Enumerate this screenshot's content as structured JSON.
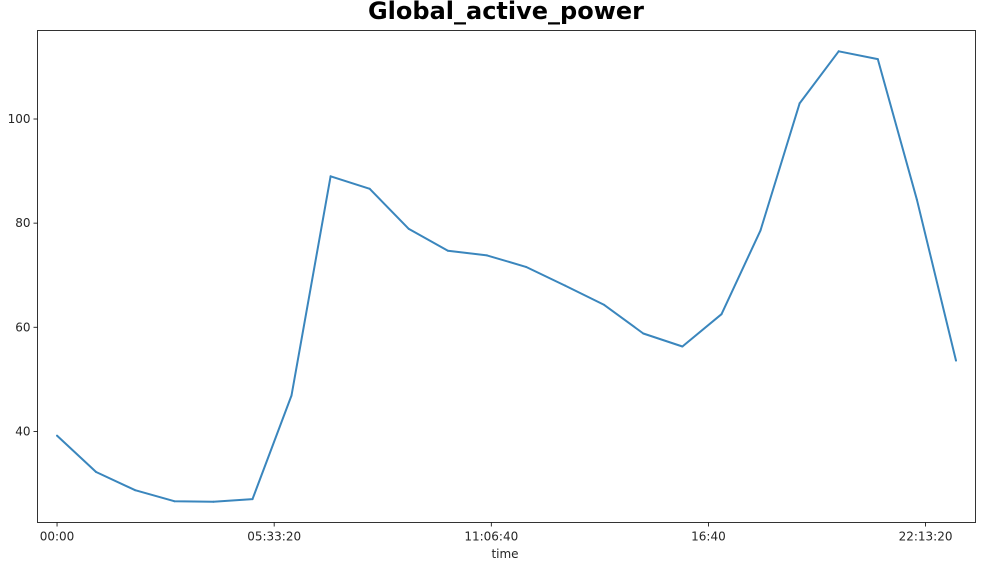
{
  "chart_data": {
    "type": "line",
    "title": "Global_active_power",
    "xlabel": "time",
    "ylabel": "",
    "x_ticks": [
      "00:00",
      "05:33:20",
      "11:06:40",
      "16:40",
      "22:13:20"
    ],
    "y_ticks": [
      "40",
      "60",
      "80",
      "100"
    ],
    "xlim": [
      -1800,
      84600
    ],
    "ylim": [
      22.5,
      117
    ],
    "grid": false,
    "series": [
      {
        "color": "#3a86bd",
        "x": [
          "00:00",
          "01:00",
          "02:00",
          "03:00",
          "04:00",
          "05:00",
          "06:00",
          "07:00",
          "08:00",
          "09:00",
          "10:00",
          "11:00",
          "12:00",
          "13:00",
          "14:00",
          "15:00",
          "16:00",
          "17:00",
          "18:00",
          "19:00",
          "20:00",
          "21:00",
          "22:00",
          "23:00"
        ],
        "x_seconds": [
          0,
          3600,
          7200,
          10800,
          14400,
          18000,
          21600,
          25200,
          28800,
          32400,
          36000,
          39600,
          43200,
          46800,
          50400,
          54000,
          57600,
          61200,
          64800,
          68400,
          72000,
          75600,
          79200,
          82800
        ],
        "values": [
          39.2,
          32.2,
          28.7,
          26.6,
          26.5,
          27.0,
          46.9,
          89.0,
          86.6,
          78.9,
          74.7,
          73.8,
          71.6,
          68.0,
          64.3,
          58.8,
          56.3,
          62.5,
          78.6,
          103.0,
          113.0,
          111.5,
          84.5,
          53.6
        ]
      }
    ]
  }
}
